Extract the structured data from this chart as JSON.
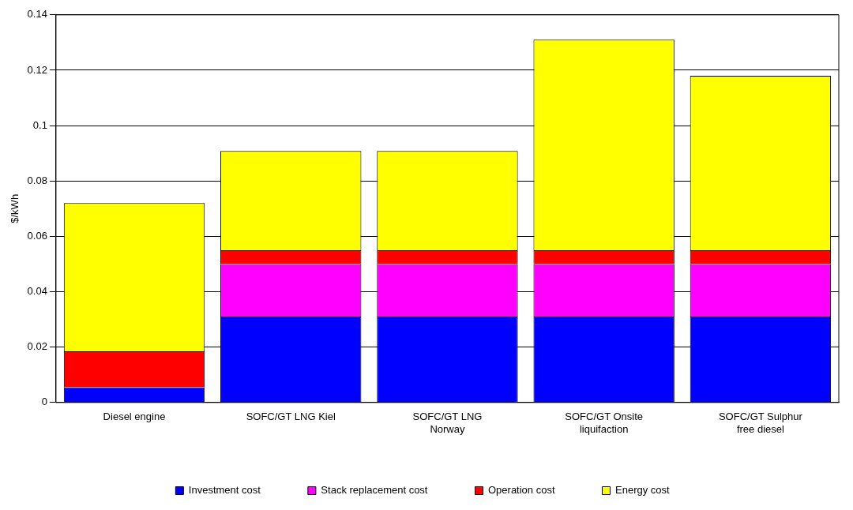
{
  "chart_data": {
    "type": "bar",
    "stacked": true,
    "ylabel": "$/kWh",
    "categories": [
      "Diesel engine",
      "SOFC/GT LNG Kiel",
      "SOFC/GT LNG Norway",
      "SOFC/GT Onsite liquifaction",
      "SOFC/GT Sulphur free diesel"
    ],
    "series": [
      {
        "name": "Investment cost",
        "color": "#0000ff",
        "values": [
          0.0055,
          0.031,
          0.031,
          0.031,
          0.031
        ]
      },
      {
        "name": "Stack replacement cost",
        "color": "#ff00ff",
        "values": [
          0,
          0.019,
          0.019,
          0.019,
          0.019
        ]
      },
      {
        "name": "Operation cost",
        "color": "#ff0000",
        "values": [
          0.013,
          0.005,
          0.005,
          0.005,
          0.005
        ]
      },
      {
        "name": "Energy cost",
        "color": "#ffff00",
        "values": [
          0.0535,
          0.0358,
          0.0358,
          0.076,
          0.063
        ]
      }
    ],
    "ylim": [
      0,
      0.14
    ],
    "yticks": [
      0,
      0.02,
      0.04,
      0.06,
      0.08,
      0.1,
      0.12,
      0.14
    ],
    "grid": "y",
    "legend": "bottom"
  }
}
